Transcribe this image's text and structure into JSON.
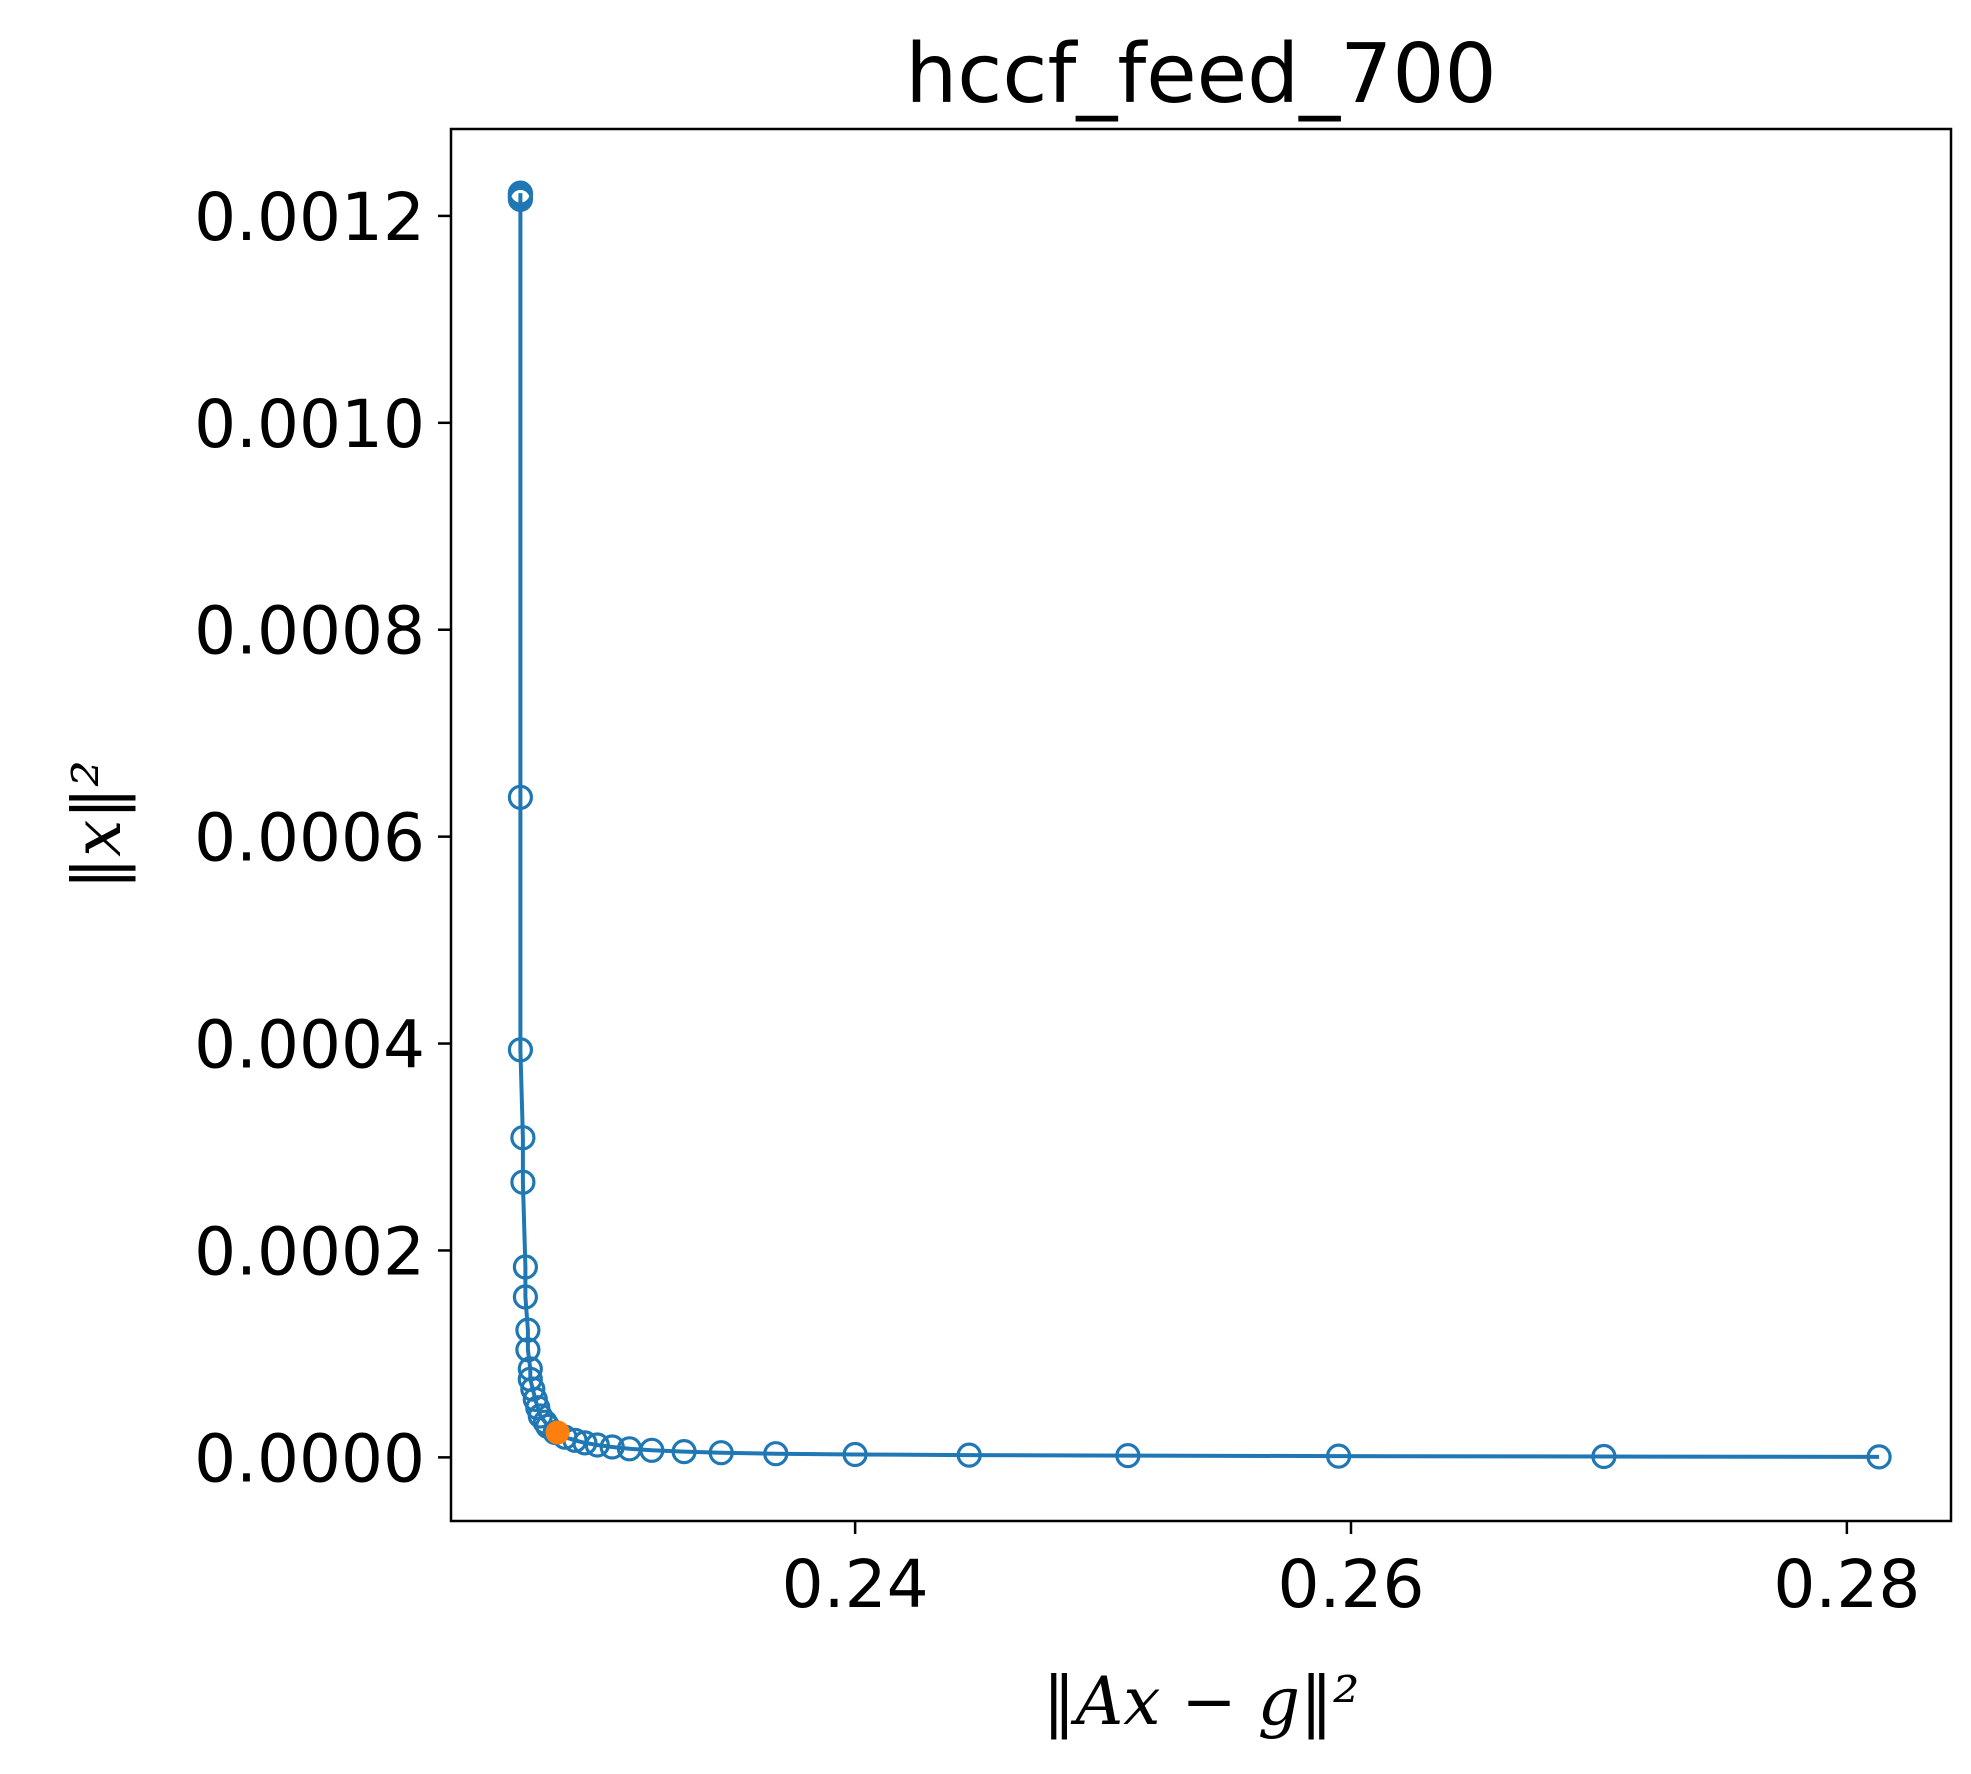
{
  "chart_data": {
    "type": "line",
    "title": "hccf_feed_700",
    "xlabel": "‖Ax − g‖²",
    "ylabel": "‖x‖²",
    "xlim": [
      0.2237,
      0.2842
    ],
    "ylim": [
      -6.15e-05,
      0.001284
    ],
    "xticks": [
      0.24,
      0.26,
      0.28
    ],
    "xtick_labels": [
      "0.24",
      "0.26",
      "0.28"
    ],
    "yticks": [
      0.0,
      0.0002,
      0.0004,
      0.0006,
      0.0008,
      0.001,
      0.0012
    ],
    "ytick_labels": [
      "0.0000",
      "0.0002",
      "0.0004",
      "0.0006",
      "0.0008",
      "0.0010",
      "0.0012"
    ],
    "grid": false,
    "series": [
      {
        "color": "#1f77b4",
        "marker": "open-circle",
        "points": [
          [
            0.2265,
            0.001222
          ],
          [
            0.2265,
            0.001221
          ],
          [
            0.2265,
            0.001219
          ],
          [
            0.2265,
            0.001218
          ],
          [
            0.2265,
            0.001216
          ],
          [
            0.2265,
            0.000638
          ],
          [
            0.2265,
            0.000394
          ],
          [
            0.2266,
            0.000309
          ],
          [
            0.2266,
            0.000266
          ],
          [
            0.2267,
            0.000184
          ],
          [
            0.2267,
            0.000155
          ],
          [
            0.2268,
            0.000123
          ],
          [
            0.2268,
            0.000104
          ],
          [
            0.2269,
            8.55e-05
          ],
          [
            0.2269,
            7.55e-05
          ],
          [
            0.227,
            6.6e-05
          ],
          [
            0.2271,
            5.6e-05
          ],
          [
            0.2272,
            4.8e-05
          ],
          [
            0.2273,
            4e-05
          ],
          [
            0.2275,
            3.4e-05
          ],
          [
            0.2276,
            3e-05
          ],
          [
            0.2279,
            2.4e-05
          ],
          [
            0.2283,
            1.95e-05
          ],
          [
            0.2287,
            1.65e-05
          ],
          [
            0.2291,
            1.4e-05
          ],
          [
            0.2296,
            1.2e-05
          ],
          [
            0.2302,
            1e-05
          ],
          [
            0.2309,
            8.3e-06
          ],
          [
            0.2318,
            6.8e-06
          ],
          [
            0.2331,
            5.6e-06
          ],
          [
            0.2346,
            4.5e-06
          ],
          [
            0.2368,
            3.6e-06
          ],
          [
            0.24,
            2.8e-06
          ],
          [
            0.2446,
            2.2e-06
          ],
          [
            0.251,
            1.7e-06
          ],
          [
            0.2595,
            1.2e-06
          ],
          [
            0.2702,
            8e-07
          ],
          [
            0.2813,
            5e-07
          ]
        ]
      },
      {
        "color": "#ff7f0e",
        "marker": "filled-circle",
        "points": [
          [
            0.228,
            2.4e-05
          ]
        ]
      }
    ]
  }
}
